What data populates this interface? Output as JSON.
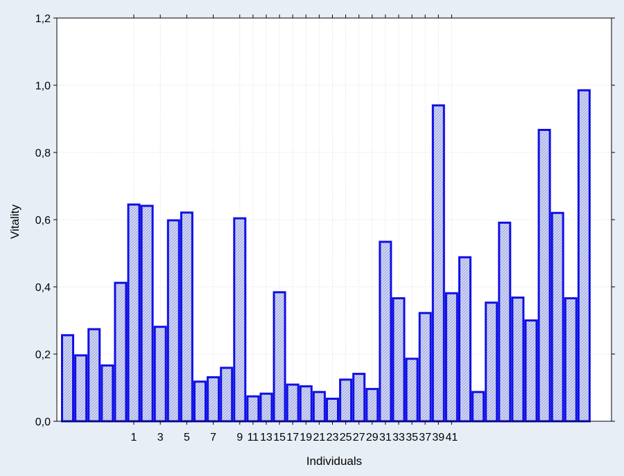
{
  "chart_data": {
    "type": "bar",
    "xlabel": "Individuals",
    "ylabel": "Vitality",
    "ylim": [
      0,
      1.2
    ],
    "yticks": [
      "0,0",
      "0,2",
      "0,4",
      "0,6",
      "0,8",
      "1,0",
      "1,2"
    ],
    "grid": true,
    "bar_color": "#1010e6",
    "bar_fill": "#cdd3f0",
    "background": "#e8eef6",
    "plot_background": "#ffffff",
    "x_tick_labels": [
      {
        "label": "1",
        "bar": 5
      },
      {
        "label": "3",
        "bar": 7
      },
      {
        "label": "5",
        "bar": 9
      },
      {
        "label": "7",
        "bar": 11
      },
      {
        "label": "9",
        "bar": 13
      },
      {
        "label": "11",
        "bar": 14
      },
      {
        "label": "13",
        "bar": 15
      },
      {
        "label": "15",
        "bar": 16
      },
      {
        "label": "17",
        "bar": 17
      },
      {
        "label": "19",
        "bar": 18
      },
      {
        "label": "21",
        "bar": 19
      },
      {
        "label": "23",
        "bar": 20
      },
      {
        "label": "25",
        "bar": 21
      },
      {
        "label": "27",
        "bar": 22
      },
      {
        "label": "29",
        "bar": 23
      },
      {
        "label": "31",
        "bar": 24
      },
      {
        "label": "33",
        "bar": 25
      },
      {
        "label": "35",
        "bar": 26
      },
      {
        "label": "37",
        "bar": 27
      },
      {
        "label": "39",
        "bar": 28
      },
      {
        "label": "41",
        "bar": 29
      }
    ],
    "values": [
      0.256,
      0.196,
      0.274,
      0.166,
      0.412,
      0.645,
      0.641,
      0.281,
      0.598,
      0.621,
      0.118,
      0.131,
      0.159,
      0.604,
      0.074,
      0.082,
      0.384,
      0.109,
      0.104,
      0.087,
      0.067,
      0.124,
      0.141,
      0.096,
      0.534,
      0.366,
      0.186,
      0.322,
      0.94,
      0.381,
      0.488,
      0.087,
      0.353,
      0.591,
      0.368,
      0.3,
      0.867,
      0.62,
      0.366,
      0.985
    ]
  }
}
